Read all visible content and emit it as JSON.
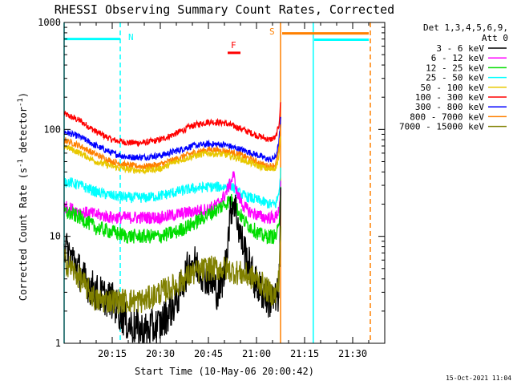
{
  "chart_data": {
    "type": "line",
    "title": "RHESSI Observing Summary Count Rates, Corrected",
    "xlabel": "Start Time (10-May-06 20:00:42)",
    "ylabel": "Corrected Count Rate (s⁻¹ detector⁻¹)",
    "ylabel_parts": {
      "main": "Corrected Count Rate (s",
      "exp1": "-1",
      "mid": " detector",
      "exp2": "-1",
      "end": ")"
    },
    "yscale": "log",
    "ylim": [
      1,
      1000
    ],
    "xlim_minutes": [
      0,
      100
    ],
    "y_ticks": [
      "1",
      "10",
      "100",
      "1000"
    ],
    "x_ticks": [
      {
        "label": "20:15",
        "minute": 15
      },
      {
        "label": "20:30",
        "minute": 30
      },
      {
        "label": "20:45",
        "minute": 45
      },
      {
        "label": "21:00",
        "minute": 60
      },
      {
        "label": "21:15",
        "minute": 75
      },
      {
        "label": "21:30",
        "minute": 90
      }
    ],
    "legend": {
      "placement": "right",
      "header": [
        "Det 1,3,4,5,6,9,",
        "Att 0"
      ],
      "entries": [
        {
          "label": "3 - 6 keV",
          "color": "#000000"
        },
        {
          "label": "6 - 12 keV",
          "color": "#ff00ff"
        },
        {
          "label": "12 - 25 keV",
          "color": "#00dd00"
        },
        {
          "label": "25 - 50 keV",
          "color": "#00ffff"
        },
        {
          "label": "50 - 100 keV",
          "color": "#e8c800"
        },
        {
          "label": "100 - 300 keV",
          "color": "#ff0000"
        },
        {
          "label": "300 - 800 keV",
          "color": "#0000ff"
        },
        {
          "label": "800 - 7000 keV",
          "color": "#ff8000"
        },
        {
          "label": "7000 - 15000 keV",
          "color": "#808000"
        }
      ]
    },
    "annotations": [
      {
        "label": "N",
        "minute": 18,
        "color": "#00ffff"
      },
      {
        "label": "F",
        "minute": 52,
        "color": "#ff0000"
      },
      {
        "label": "S",
        "minute": 67,
        "color": "#ff8000"
      }
    ],
    "flags": [
      {
        "name": "night",
        "color": "#00ffff",
        "from": 0,
        "to": 17.5,
        "y": 700
      },
      {
        "name": "flare",
        "color": "#ff0000",
        "from": 51,
        "to": 55,
        "y": 520
      },
      {
        "name": "saa",
        "color": "#ff8000",
        "from": 68,
        "to": 95,
        "y": 790
      },
      {
        "name": "night",
        "color": "#00ffff",
        "from": 78,
        "to": 95,
        "y": 690
      }
    ],
    "vlines": [
      {
        "minute": 0,
        "color": "#00ffff",
        "style": "solid"
      },
      {
        "minute": 17.5,
        "color": "#00ffff",
        "style": "dashed"
      },
      {
        "minute": 67.5,
        "color": "#ff8000",
        "style": "solid"
      },
      {
        "minute": 77.7,
        "color": "#00ffff",
        "style": "solid"
      },
      {
        "minute": 95.5,
        "color": "#ff8000",
        "style": "dashed"
      }
    ],
    "series": [
      {
        "name": "100 - 300 keV",
        "color": "#ff0000",
        "noise": 0.03,
        "x": [
          0,
          5,
          10,
          15,
          20,
          25,
          30,
          35,
          40,
          45,
          50,
          55,
          60,
          62,
          64,
          66,
          67,
          67.6
        ],
        "y": [
          140,
          120,
          95,
          80,
          75,
          75,
          80,
          92,
          108,
          118,
          115,
          102,
          88,
          84,
          80,
          84,
          110,
          190
        ]
      },
      {
        "name": "300 - 800 keV",
        "color": "#0000ff",
        "noise": 0.03,
        "x": [
          0,
          5,
          10,
          15,
          20,
          25,
          30,
          35,
          40,
          45,
          50,
          55,
          60,
          62,
          64,
          66,
          67,
          67.6
        ],
        "y": [
          95,
          85,
          70,
          60,
          55,
          55,
          57,
          63,
          70,
          73,
          72,
          65,
          58,
          55,
          52,
          55,
          75,
          130
        ]
      },
      {
        "name": "800 - 7000 keV",
        "color": "#ff8000",
        "noise": 0.03,
        "x": [
          0,
          5,
          10,
          15,
          20,
          25,
          30,
          35,
          40,
          45,
          50,
          55,
          60,
          62,
          64,
          66,
          67,
          67.6
        ],
        "y": [
          80,
          70,
          58,
          50,
          46,
          45,
          47,
          53,
          60,
          65,
          63,
          58,
          50,
          47,
          45,
          47,
          65,
          110
        ]
      },
      {
        "name": "50 - 100 keV",
        "color": "#e8c800",
        "noise": 0.03,
        "x": [
          0,
          5,
          10,
          15,
          20,
          25,
          30,
          35,
          40,
          45,
          50,
          55,
          60,
          62,
          64,
          66,
          67,
          67.6
        ],
        "y": [
          70,
          60,
          50,
          45,
          42,
          41,
          43,
          50,
          56,
          60,
          58,
          53,
          46,
          44,
          42,
          44,
          55,
          95
        ]
      },
      {
        "name": "25 - 50 keV",
        "color": "#00ffff",
        "noise": 0.05,
        "x": [
          0,
          5,
          10,
          15,
          20,
          25,
          30,
          35,
          40,
          45,
          50,
          52,
          54,
          56,
          60,
          62,
          64,
          66,
          67,
          67.6
        ],
        "y": [
          33,
          30,
          26,
          24,
          23,
          23,
          24,
          26,
          28,
          29,
          29,
          30,
          26,
          24,
          22,
          21,
          20,
          20,
          25,
          45
        ]
      },
      {
        "name": "6 - 12 keV",
        "color": "#ff00ff",
        "noise": 0.06,
        "x": [
          0,
          5,
          10,
          15,
          20,
          25,
          30,
          35,
          40,
          45,
          48,
          50,
          52,
          52.8,
          54,
          56,
          58,
          60,
          62,
          64,
          66,
          67,
          67.6
        ],
        "y": [
          19,
          17,
          16,
          15,
          15,
          15,
          15,
          16,
          17,
          18,
          20,
          24,
          32,
          38,
          25,
          19,
          17,
          16,
          15,
          15,
          15,
          18,
          30
        ]
      },
      {
        "name": "12 - 25 keV",
        "color": "#00dd00",
        "noise": 0.07,
        "x": [
          0,
          5,
          10,
          15,
          20,
          25,
          30,
          35,
          40,
          45,
          48,
          50,
          52,
          54,
          56,
          60,
          62,
          64,
          66,
          67,
          67.6
        ],
        "y": [
          17,
          15,
          12,
          11,
          10,
          10,
          10,
          11,
          13,
          16,
          18,
          20,
          22,
          18,
          14,
          11,
          10,
          10,
          10,
          12,
          35
        ]
      },
      {
        "name": "3 - 6 keV",
        "color": "#000000",
        "noise": 0.18,
        "x": [
          0,
          3,
          6,
          10,
          15,
          20,
          25,
          30,
          35,
          38,
          40,
          42,
          45,
          48,
          50,
          52,
          53,
          55,
          58,
          60,
          62,
          64,
          66,
          67,
          67.6
        ],
        "y": [
          8,
          6,
          4,
          3,
          2.5,
          1.5,
          1.3,
          1.5,
          2.5,
          4.5,
          6,
          5,
          4,
          3,
          4.5,
          18,
          22,
          10,
          5,
          3.5,
          3,
          2.5,
          2.5,
          3,
          25
        ]
      },
      {
        "name": "7000 - 15000 keV",
        "color": "#808000",
        "noise": 0.12,
        "x": [
          0,
          5,
          10,
          15,
          20,
          25,
          30,
          35,
          40,
          45,
          50,
          55,
          60,
          62,
          64,
          66,
          67,
          67.6
        ],
        "y": [
          6,
          4,
          2.5,
          2.5,
          2.5,
          2.5,
          3,
          3.5,
          4.5,
          5,
          5,
          4.5,
          4,
          3.5,
          3,
          2.8,
          4,
          15
        ]
      }
    ]
  },
  "footer": {
    "timestamp": "15-Oct-2021 11:04"
  }
}
